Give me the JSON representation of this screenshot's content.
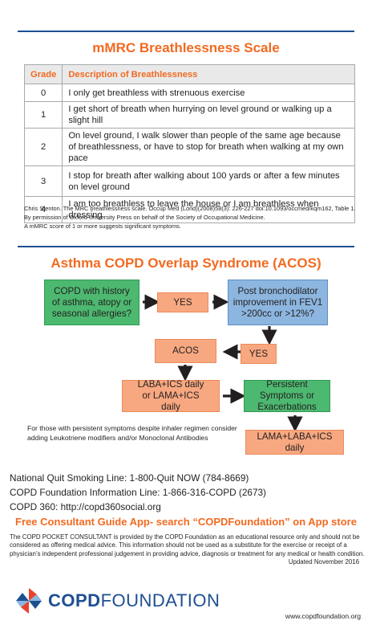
{
  "mmrc": {
    "title": "mMRC Breathlessness Scale",
    "headers": {
      "grade": "Grade",
      "description": "Description of Breathlessness"
    },
    "rows": [
      {
        "grade": "0",
        "description": "I only get breathless with strenuous exercise"
      },
      {
        "grade": "1",
        "description": "I get short of breath when hurrying on level ground or walking up a slight hill"
      },
      {
        "grade": "2",
        "description": "On level ground, I walk slower than people of the same age because of breathlessness, or have to stop for breath when walking at my own pace"
      },
      {
        "grade": "3",
        "description": "I stop for breath after walking about 100 yards or after a few minutes on level ground"
      },
      {
        "grade": "4",
        "description": "I am too breathless to leave the house or I am breathless when dressing"
      }
    ],
    "citation_1": "Chris Stenton. The MRC breathlessness scale. Occup Med (Lond)(2008)58(3): 226-227 doi:10.1093/occmed/kqm162, Table 1.",
    "citation_2": "By permission of Oxford University Press on behalf of the Society of Occupational Medicine.",
    "citation_3": "A mMRC score of 1 or more suggests significant symptoms."
  },
  "acos": {
    "title": "Asthma COPD Overlap Syndrome (ACOS)",
    "box_copd": "COPD with history of asthma, atopy or seasonal allergies?",
    "box_yes_1": "YES",
    "box_post": "Post bronchodilator improvement in FEV1 >200cc or >12%?",
    "box_yes_2": "YES",
    "box_acos": "ACOS",
    "box_laba": "LABA+ICS daily or LAMA+ICS daily",
    "box_persistent": "Persistent Symptoms or Exacerbations",
    "box_triple": "LAMA+LABA+ICS daily",
    "note": "For those with persistent symptoms despite inhaler regimen consider adding Leukotriene modifiers and/or Monoclonal Antibodies"
  },
  "contacts": {
    "quit_line": "National Quit Smoking Line: 1-800-Quit NOW (784-8669)",
    "info_line": "COPD Foundation Information Line: 1-866-316-COPD (2673)",
    "copd360": "COPD 360: http://copd360social.org",
    "app_promo": "Free Consultant Guide App- search “COPDFoundation” on App store"
  },
  "footer": {
    "disclaimer": "The COPD POCKET CONSULTANT is provided by the COPD Foundation as an educational resource only and should not be considered as offering medical advice. This information should not be used as a substitute for the exercise or receipt of a physician’s independent professional judgement in providing advice, diagnosis or treatment for any medical or health condition.",
    "updated": "Updated November 2016",
    "logo_bold": "COPD",
    "logo_light": "FOUNDATION",
    "website": "www.copdfoundation.org"
  },
  "colors": {
    "accent_orange": "#f26a21",
    "brand_blue": "#1d4f91",
    "box_green": "#4db870",
    "box_blue": "#8cb6df",
    "box_orange": "#f7a880"
  }
}
